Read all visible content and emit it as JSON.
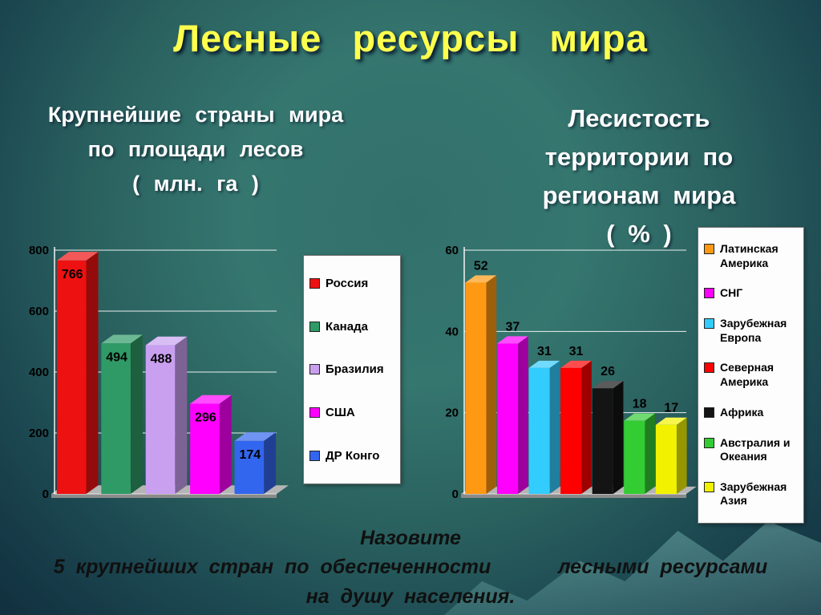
{
  "slide": {
    "title": "Лесные ресурсы мира",
    "left_chart_title": "Крупнейшие страны мира\nпо площади лесов\n( млн. га )",
    "right_chart_title": "Лесистость\nтерритории по\nрегионам мира\n( % )",
    "bottom_text": "Назовите\n5 крупнейших стран по обеспеченности      лесными ресурсами\nна душу населения."
  },
  "colors": {
    "background_teal": "#2a615f",
    "title_yellow": "#ffff4d",
    "subtitle_white": "#ffffff",
    "grid_white": "#ffffff",
    "floor_gray": "#b5b5b5",
    "legend_background": "#fdfdfd"
  },
  "chart_data": [
    {
      "type": "bar",
      "title": "Крупнейшие страны мира по площади лесов ( млн. га )",
      "categories": [
        "Россия",
        "Канада",
        "Бразилия",
        "США",
        "ДР Конго"
      ],
      "values": [
        766,
        494,
        488,
        296,
        174
      ],
      "colors": [
        "#ee1111",
        "#2f9a66",
        "#c9a0f0",
        "#ff00ff",
        "#3366ee"
      ],
      "ylim": [
        0,
        800
      ],
      "yticks": [
        0,
        200,
        400,
        600,
        800
      ],
      "grid": true,
      "legend_position": "right",
      "label_position": "inside",
      "style": "3d-bar"
    },
    {
      "type": "bar",
      "title": "Лесистость территории по регионам мира ( % )",
      "categories": [
        "Латинская Америка",
        "СНГ",
        "Зарубежная Европа",
        "Северная Америка",
        "Африка",
        "Австралия и Океания",
        "Зарубежная Азия"
      ],
      "values": [
        52,
        37,
        31,
        31,
        26,
        18,
        17
      ],
      "colors": [
        "#ff9913",
        "#ff00ff",
        "#33ccff",
        "#ff0000",
        "#141414",
        "#33cc33",
        "#f2f200"
      ],
      "ylim": [
        0,
        60
      ],
      "yticks": [
        0,
        20,
        40,
        60
      ],
      "grid": true,
      "legend_position": "right",
      "label_position": "above",
      "style": "3d-bar"
    }
  ]
}
